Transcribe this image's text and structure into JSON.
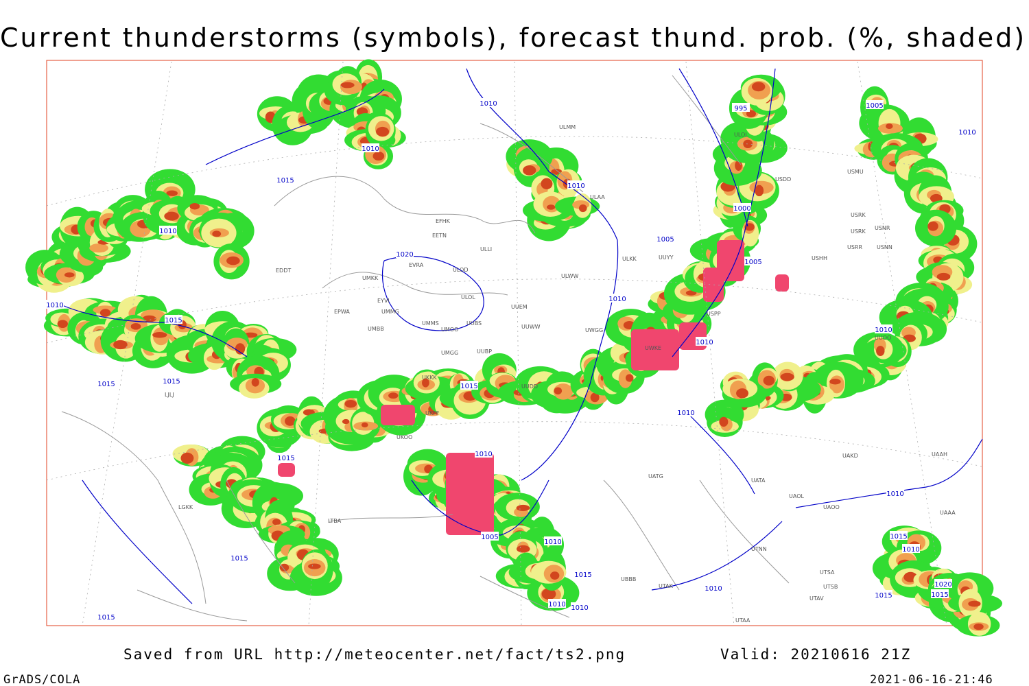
{
  "header": {
    "title": "Current thunderstorms (symbols), forecast thund. prob. (%, shaded)"
  },
  "footer": {
    "source": "Saved from URL http://meteocenter.net/fact/ts2.png",
    "valid": "Valid: 20210616 21Z",
    "software": "GrADS/COLA",
    "timestamp": "2021-06-16-21:46"
  },
  "isobar_labels": [
    "1010",
    "1010",
    "1015",
    "995",
    "1000",
    "1005",
    "1005",
    "1010",
    "1020",
    "1010",
    "1010",
    "1015",
    "1015",
    "1015",
    "1010",
    "1010",
    "1010",
    "1010",
    "1005",
    "1015",
    "1010",
    "1015",
    "1010",
    "1010",
    "1015",
    "1010",
    "1020",
    "1015",
    "1015",
    "1005",
    "1010",
    "1015",
    "1015",
    "1015",
    "1010",
    "1010",
    "1010"
  ],
  "station_labels": [
    "ULMM",
    "ULOL",
    "USDD",
    "USMU",
    "ULAA",
    "EFHK",
    "EETN",
    "ULLI",
    "USRK",
    "USRK",
    "USNR",
    "USRR",
    "USNN",
    "UUYY",
    "ULKK",
    "USHH",
    "EVRA",
    "ULOD",
    "EDDT",
    "UMKK",
    "ULWW",
    "ULOL",
    "EYVI",
    "UUEM",
    "EPWA",
    "UMMG",
    "UMMS",
    "UUBS",
    "UMOO",
    "UUWW",
    "UWGG",
    "UMBB",
    "UMGG",
    "UUBP",
    "UWKE",
    "USPP",
    "UUOO",
    "UKKK",
    "UUDD",
    "UKFF",
    "UKOO",
    "UATG",
    "UATA",
    "UAOL",
    "UAOO",
    "UTNN",
    "UBBB",
    "UTAK",
    "UTSA",
    "UTSB",
    "UTAV",
    "UAAH",
    "UAKD",
    "UAAA",
    "UTAA",
    "LTBA",
    "LGKK",
    "LJLJ"
  ]
}
